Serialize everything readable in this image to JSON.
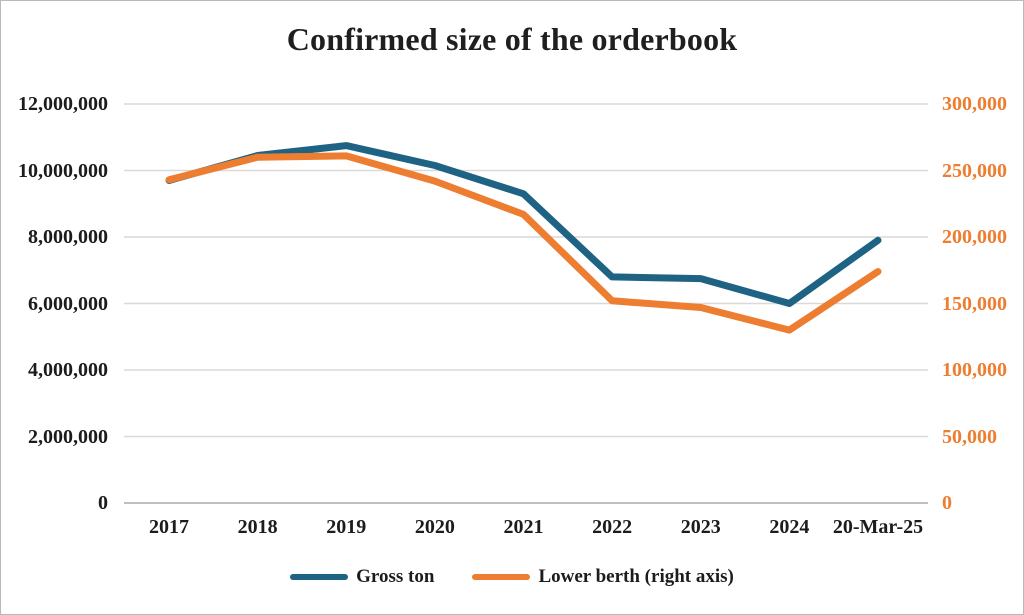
{
  "chart_data": {
    "type": "line",
    "title": "Confirmed size of the orderbook",
    "title_color": "#1f1f1f",
    "categories": [
      "2017",
      "2018",
      "2019",
      "2020",
      "2021",
      "2022",
      "2023",
      "2024",
      "20-Mar-25"
    ],
    "series": [
      {
        "name": "Gross ton",
        "axis": "left",
        "color": "#1F6384",
        "values": [
          9700000,
          10450000,
          10750000,
          10150000,
          9300000,
          6800000,
          6750000,
          6000000,
          7900000
        ]
      },
      {
        "name": "Lower berth (right axis)",
        "axis": "right",
        "color": "#ED7D31",
        "values": [
          243000,
          260000,
          261000,
          242000,
          217000,
          152000,
          147000,
          130000,
          174000
        ]
      }
    ],
    "left_axis": {
      "min": 0,
      "max": 12000000,
      "tick_step": 2000000,
      "tick_labels_top_to_bottom": [
        "12,000,000",
        "10,000,000",
        "8,000,000",
        "6,000,000",
        "4,000,000",
        "2,000,000",
        "0"
      ],
      "text_color": "#1c1c1c"
    },
    "right_axis": {
      "min": 0,
      "max": 300000,
      "tick_step": 50000,
      "tick_labels_top_to_bottom": [
        "300,000",
        "250,000",
        "200,000",
        "150,000",
        "100,000",
        "50,000",
        "0"
      ],
      "text_color": "#ED7D31"
    },
    "x_axis": {
      "text_color": "#1c1c1c"
    },
    "grid": {
      "horizontal_gridlines": true,
      "gridline_color": "#D9D9D9",
      "baseline_color": "#BFBFBF"
    },
    "legend_position": "bottom",
    "legend": [
      {
        "label": "Gross ton",
        "color": "#1F6384"
      },
      {
        "label": "Lower berth (right axis)",
        "color": "#ED7D31"
      }
    ]
  }
}
